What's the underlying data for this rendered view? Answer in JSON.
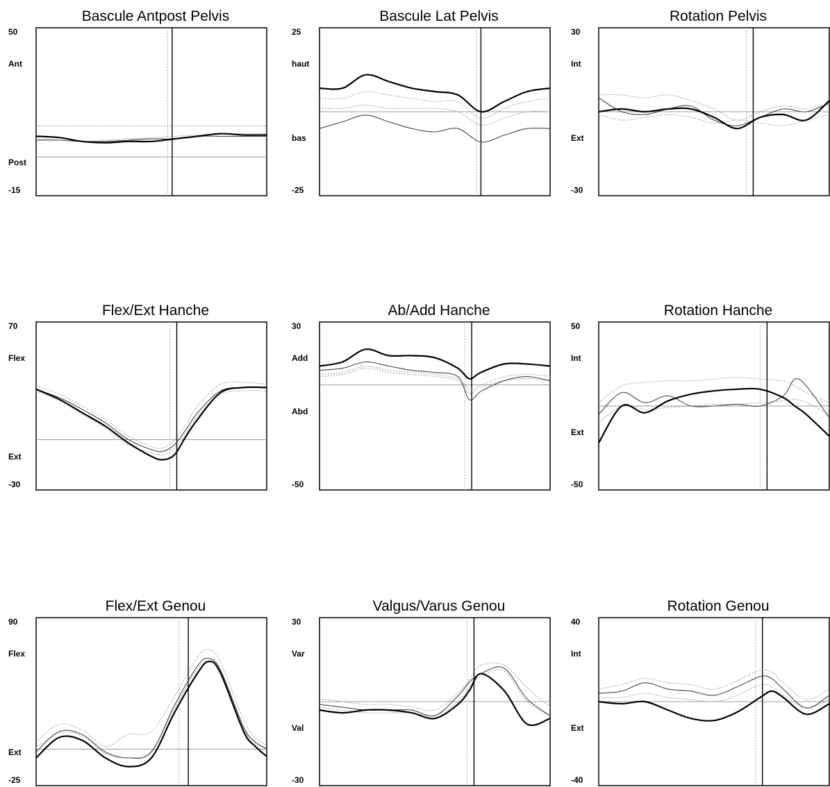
{
  "chart_data": [
    {
      "type": "line",
      "title": "Bascule Antpost Pelvis",
      "ylim": [
        -15,
        50
      ],
      "ytick_labels": {
        "top": "50",
        "upper": "Ant",
        "lower": "Post",
        "bottom": "-15"
      },
      "xlim": [
        0,
        100
      ],
      "reference_line": 0,
      "x": [
        0,
        10,
        20,
        30,
        40,
        50,
        60,
        70,
        80,
        90,
        100
      ],
      "series": [
        {
          "style": "bold",
          "values": [
            8,
            7.5,
            6,
            5.5,
            6,
            6,
            7,
            8,
            9,
            8.5,
            8.5
          ]
        },
        {
          "style": "thin",
          "values": [
            6.5,
            6.5,
            6,
            6,
            6.5,
            7,
            7,
            8,
            8,
            8,
            8
          ]
        },
        {
          "style": "dotted",
          "values": [
            12,
            12,
            12,
            12,
            12,
            12,
            12,
            12,
            12,
            12,
            12
          ]
        },
        {
          "style": "dotted",
          "values": [
            7,
            6.5,
            6,
            6.5,
            7,
            7.5,
            8,
            8.5,
            9,
            9,
            9
          ]
        }
      ],
      "cursor_x": [
        57,
        59
      ]
    },
    {
      "type": "line",
      "title": "Bascule Lat Pelvis",
      "ylim": [
        -25,
        25
      ],
      "ytick_labels": {
        "top": "25",
        "upper": "haut",
        "lower": "bas",
        "bottom": "-25"
      },
      "xlim": [
        0,
        100
      ],
      "reference_line": 0,
      "x": [
        0,
        10,
        20,
        30,
        40,
        50,
        60,
        70,
        80,
        90,
        100
      ],
      "series": [
        {
          "style": "bold",
          "values": [
            7,
            7,
            11,
            9,
            7,
            6,
            5,
            0,
            3,
            6,
            7
          ]
        },
        {
          "style": "thin",
          "values": [
            -5,
            -3,
            -1,
            -3,
            -5,
            -6,
            -5,
            -9,
            -7,
            -5,
            -5
          ]
        },
        {
          "style": "dotted",
          "values": [
            4,
            4,
            6,
            5,
            4,
            3,
            3,
            -2,
            1,
            3,
            4
          ]
        },
        {
          "style": "dotted",
          "values": [
            1,
            1,
            2,
            1,
            1,
            1,
            0,
            -4,
            -2,
            0,
            0
          ]
        }
      ],
      "cursor_x": [
        68,
        70
      ]
    },
    {
      "type": "line",
      "title": "Rotation Pelvis",
      "ylim": [
        -30,
        30
      ],
      "ytick_labels": {
        "top": "30",
        "upper": "Int",
        "lower": "Ext",
        "bottom": "-30"
      },
      "xlim": [
        0,
        100
      ],
      "reference_line": 0,
      "x": [
        0,
        10,
        20,
        30,
        40,
        50,
        60,
        70,
        80,
        90,
        100
      ],
      "series": [
        {
          "style": "bold",
          "values": [
            0,
            1,
            0,
            1,
            1,
            -2,
            -6,
            -2,
            -1,
            -3,
            4
          ]
        },
        {
          "style": "thin",
          "values": [
            5,
            0,
            -1,
            1,
            2,
            -3,
            -5,
            -2,
            1,
            0,
            3
          ]
        },
        {
          "style": "dotted",
          "values": [
            6,
            6,
            5,
            6,
            4,
            1,
            -3,
            0,
            2,
            1,
            3
          ]
        },
        {
          "style": "dotted",
          "values": [
            -1,
            -3,
            -2,
            -1,
            -2,
            -4,
            -3,
            -4,
            -5,
            -3,
            -1
          ]
        }
      ],
      "cursor_x": [
        64,
        67
      ]
    },
    {
      "type": "line",
      "title": "Flex/Ext Hanche",
      "ylim": [
        -30,
        70
      ],
      "ytick_labels": {
        "top": "70",
        "upper": "Flex",
        "lower": "Ext",
        "bottom": "-30"
      },
      "xlim": [
        0,
        100
      ],
      "reference_line": 0,
      "x": [
        0,
        10,
        20,
        30,
        40,
        50,
        55,
        60,
        65,
        70,
        80,
        90,
        100
      ],
      "series": [
        {
          "style": "bold",
          "values": [
            30,
            24,
            16,
            8,
            -2,
            -10,
            -12,
            -9,
            2,
            12,
            28,
            31,
            31
          ]
        },
        {
          "style": "thin",
          "values": [
            30,
            25,
            18,
            10,
            0,
            -6,
            -7,
            -3,
            6,
            16,
            29,
            31,
            31
          ]
        },
        {
          "style": "dotted",
          "values": [
            32,
            27,
            20,
            12,
            2,
            -4,
            -5,
            0,
            9,
            20,
            33,
            34,
            33
          ]
        },
        {
          "style": "dotted",
          "values": [
            29,
            23,
            15,
            7,
            -3,
            -8,
            -9,
            -5,
            4,
            14,
            27,
            29,
            29
          ]
        }
      ],
      "cursor_x": [
        58,
        61
      ]
    },
    {
      "type": "line",
      "title": "Ab/Add Hanche",
      "ylim": [
        -50,
        30
      ],
      "ytick_labels": {
        "top": "30",
        "upper": "Add",
        "lower": "Abd",
        "bottom": "-50"
      },
      "xlim": [
        0,
        100
      ],
      "reference_line": 0,
      "x": [
        0,
        10,
        20,
        30,
        40,
        50,
        60,
        65,
        70,
        80,
        90,
        100
      ],
      "series": [
        {
          "style": "bold",
          "values": [
            9,
            11,
            17,
            14,
            14,
            13,
            8,
            3,
            6,
            10,
            10,
            9
          ]
        },
        {
          "style": "thin",
          "values": [
            7,
            8,
            11,
            9,
            7,
            6,
            4,
            -7,
            -3,
            2,
            4,
            2
          ]
        },
        {
          "style": "dotted",
          "values": [
            5,
            6,
            9,
            7,
            6,
            5,
            3,
            -2,
            0,
            4,
            5,
            4
          ]
        },
        {
          "style": "dotted",
          "values": [
            4,
            5,
            8,
            6,
            5,
            4,
            2,
            -4,
            -1,
            2,
            3,
            2
          ]
        }
      ],
      "cursor_x": [
        63,
        66
      ]
    },
    {
      "type": "line",
      "title": "Rotation Hanche",
      "ylim": [
        -50,
        50
      ],
      "ytick_labels": {
        "top": "50",
        "upper": "Int",
        "lower": "Ext",
        "bottom": "-50"
      },
      "xlim": [
        0,
        100
      ],
      "reference_line": 0,
      "x": [
        0,
        10,
        20,
        30,
        40,
        50,
        60,
        70,
        80,
        85,
        90,
        100
      ],
      "series": [
        {
          "style": "bold",
          "values": [
            -22,
            0,
            -4,
            3,
            7,
            9,
            10,
            10,
            5,
            0,
            -5,
            -18
          ]
        },
        {
          "style": "thin",
          "values": [
            -5,
            8,
            2,
            6,
            0,
            0,
            1,
            0,
            6,
            16,
            12,
            -7
          ]
        },
        {
          "style": "dotted",
          "values": [
            2,
            12,
            14,
            15,
            15,
            16,
            17,
            16,
            15,
            12,
            8,
            2
          ]
        },
        {
          "style": "dotted",
          "values": [
            -10,
            0,
            -2,
            -1,
            0,
            1,
            1,
            2,
            3,
            4,
            2,
            -5
          ]
        }
      ],
      "cursor_x": [
        70,
        73
      ]
    },
    {
      "type": "line",
      "title": "Flex/Ext Genou",
      "ylim": [
        -25,
        90
      ],
      "ytick_labels": {
        "top": "90",
        "upper": "Flex",
        "lower": "Ext",
        "bottom": "-25"
      },
      "xlim": [
        0,
        100
      ],
      "reference_line": 0,
      "x": [
        0,
        10,
        20,
        30,
        40,
        50,
        60,
        70,
        75,
        80,
        90,
        95,
        100
      ],
      "series": [
        {
          "style": "bold",
          "values": [
            -6,
            8,
            6,
            -6,
            -12,
            -6,
            25,
            52,
            60,
            52,
            12,
            2,
            -5
          ]
        },
        {
          "style": "thin",
          "values": [
            -2,
            12,
            10,
            -2,
            -6,
            -2,
            30,
            57,
            62,
            54,
            15,
            5,
            0
          ]
        },
        {
          "style": "dotted",
          "values": [
            5,
            17,
            13,
            2,
            10,
            12,
            36,
            63,
            68,
            59,
            20,
            8,
            3
          ]
        },
        {
          "style": "dotted",
          "values": [
            1,
            11,
            9,
            -3,
            -6,
            -1,
            28,
            55,
            60,
            52,
            14,
            4,
            1
          ]
        }
      ],
      "cursor_x": [
        62,
        66
      ]
    },
    {
      "type": "line",
      "title": "Valgus/Varus Genou",
      "ylim": [
        -30,
        30
      ],
      "ytick_labels": {
        "top": "30",
        "upper": "Var",
        "lower": "Val",
        "bottom": "-30"
      },
      "xlim": [
        0,
        100
      ],
      "reference_line": 0,
      "x": [
        0,
        10,
        20,
        30,
        40,
        50,
        60,
        65,
        70,
        80,
        90,
        100
      ],
      "series": [
        {
          "style": "bold",
          "values": [
            -3,
            -4,
            -3,
            -3,
            -4,
            -6,
            -1,
            4,
            10,
            4,
            -8,
            -6
          ]
        },
        {
          "style": "thin",
          "values": [
            -1,
            -2,
            -3,
            -3,
            -3,
            -5,
            2,
            7,
            10,
            12,
            1,
            -5
          ]
        },
        {
          "style": "dotted",
          "values": [
            1,
            0,
            -1,
            -1,
            -2,
            -3,
            3,
            8,
            13,
            13,
            5,
            -2
          ]
        },
        {
          "style": "dotted",
          "values": [
            -2,
            -3,
            -4,
            -4,
            -4,
            -5,
            0,
            5,
            9,
            11,
            0,
            -5
          ]
        }
      ],
      "cursor_x": [
        64,
        67
      ]
    },
    {
      "type": "line",
      "title": "Rotation Genou",
      "ylim": [
        -40,
        40
      ],
      "ytick_labels": {
        "top": "40",
        "upper": "Int",
        "lower": "Ext",
        "bottom": "-40"
      },
      "xlim": [
        0,
        100
      ],
      "reference_line": 0,
      "x": [
        0,
        10,
        20,
        30,
        40,
        50,
        60,
        70,
        75,
        80,
        90,
        100
      ],
      "series": [
        {
          "style": "bold",
          "values": [
            0,
            -1,
            0,
            -4,
            -8,
            -9,
            -5,
            2,
            5,
            2,
            -6,
            -1
          ]
        },
        {
          "style": "thin",
          "values": [
            4,
            5,
            9,
            6,
            5,
            3,
            7,
            12,
            11,
            6,
            -3,
            3
          ]
        },
        {
          "style": "dotted",
          "values": [
            6,
            8,
            11,
            9,
            8,
            6,
            10,
            15,
            14,
            9,
            1,
            6
          ]
        },
        {
          "style": "dotted",
          "values": [
            2,
            2,
            4,
            2,
            1,
            0,
            3,
            8,
            7,
            3,
            -3,
            1
          ]
        }
      ],
      "cursor_x": [
        68,
        71
      ]
    }
  ]
}
